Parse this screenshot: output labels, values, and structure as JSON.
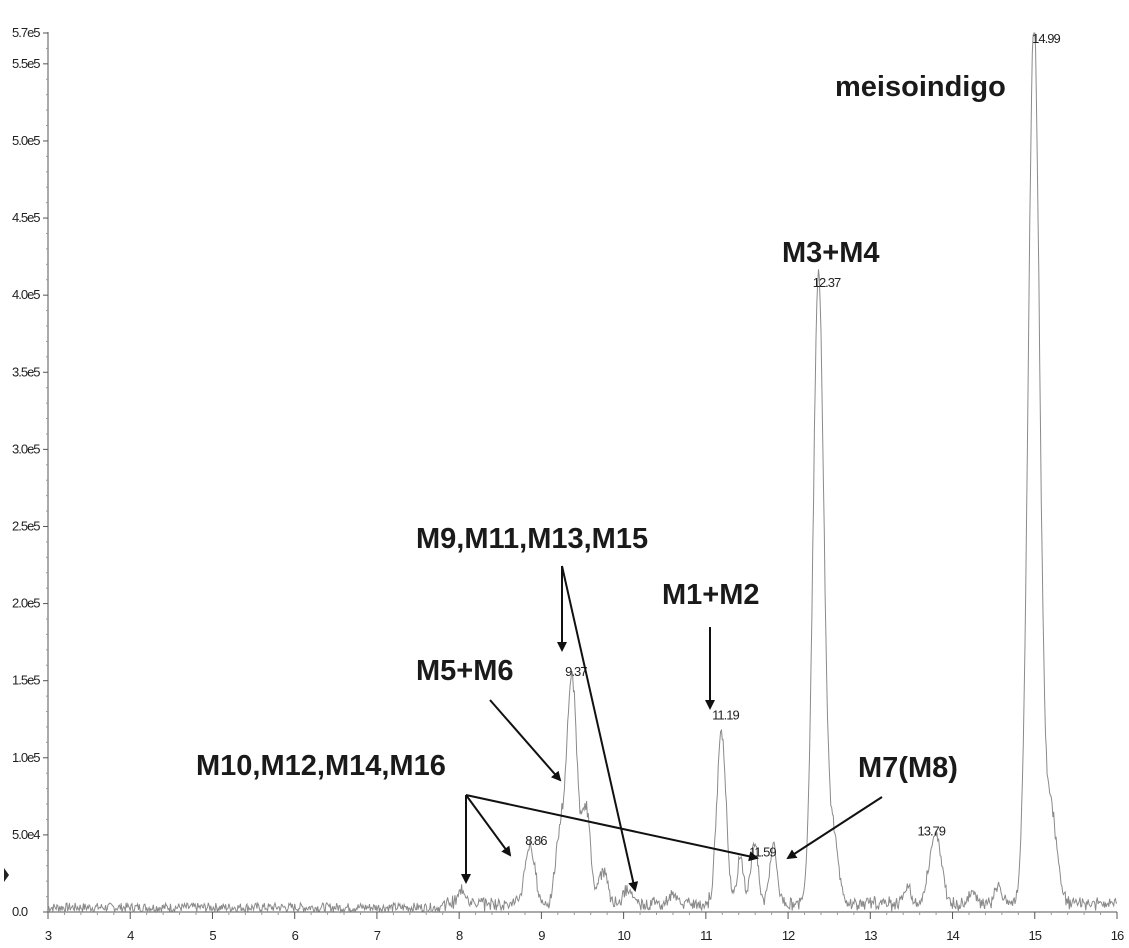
{
  "chart_data": {
    "type": "line",
    "title": "",
    "xlabel": "",
    "ylabel": "",
    "xlim": [
      3,
      16
    ],
    "ylim": [
      0,
      570000
    ],
    "x_ticks": [
      "3",
      "4",
      "5",
      "6",
      "7",
      "8",
      "9",
      "10",
      "11",
      "12",
      "13",
      "14",
      "15",
      "16"
    ],
    "y_ticks": [
      {
        "value": 0,
        "label": "0.0"
      },
      {
        "value": 50000,
        "label": "5.0e4"
      },
      {
        "value": 100000,
        "label": "1.0e5"
      },
      {
        "value": 150000,
        "label": "1.5e5"
      },
      {
        "value": 200000,
        "label": "2.0e5"
      },
      {
        "value": 250000,
        "label": "2.5e5"
      },
      {
        "value": 300000,
        "label": "3.0e5"
      },
      {
        "value": 350000,
        "label": "3.5e5"
      },
      {
        "value": 400000,
        "label": "4.0e5"
      },
      {
        "value": 450000,
        "label": "4.5e5"
      },
      {
        "value": 500000,
        "label": "5.0e5"
      },
      {
        "value": 550000,
        "label": "5.5e5"
      },
      {
        "value": 570000,
        "label": "5.7e5"
      }
    ],
    "peaks": [
      {
        "rt": 8.86,
        "intensity": 37000,
        "label": "8.86"
      },
      {
        "rt": 9.37,
        "intensity": 148000,
        "label": "9.37"
      },
      {
        "rt": 11.19,
        "intensity": 113000,
        "label": "11.19"
      },
      {
        "rt": 11.59,
        "intensity": 40000,
        "label": "11.59"
      },
      {
        "rt": 12.37,
        "intensity": 408000,
        "label": "12.37"
      },
      {
        "rt": 13.79,
        "intensity": 47000,
        "label": "13.79"
      },
      {
        "rt": 14.99,
        "intensity": 570000,
        "label": "14.99"
      }
    ],
    "annotations": [
      {
        "text": "meisoindigo"
      },
      {
        "text": "M3+M4"
      },
      {
        "text": "M9,M11,M13,M15"
      },
      {
        "text": "M1+M2"
      },
      {
        "text": "M5+M6"
      },
      {
        "text": "M10,M12,M14,M16"
      },
      {
        "text": "M7(M8)"
      }
    ]
  }
}
